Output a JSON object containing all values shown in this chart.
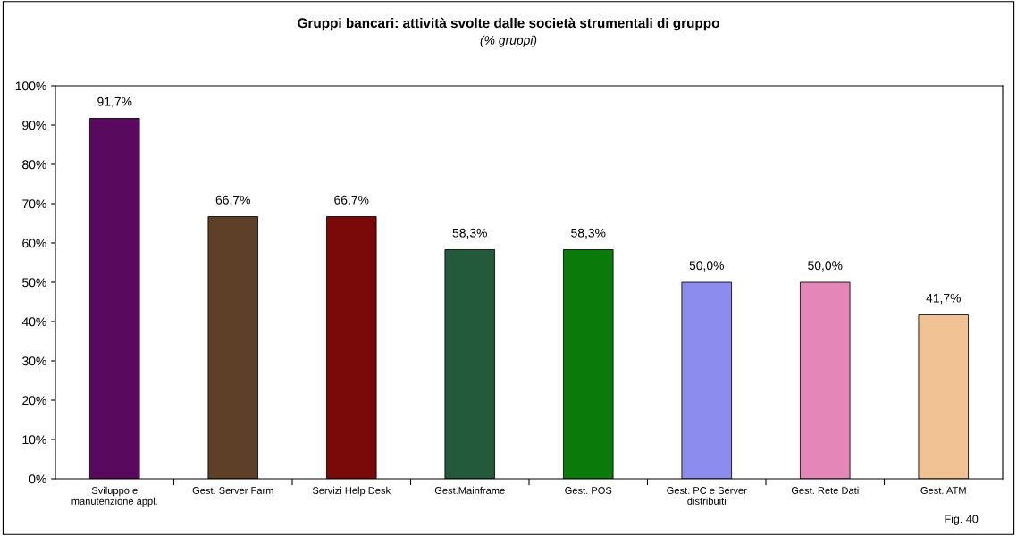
{
  "chart_data": {
    "type": "bar",
    "title": "Gruppi bancari: attività svolte dalle società strumentali di gruppo",
    "subtitle": "(% gruppi)",
    "categories": [
      "Sviluppo e\nmanutenzione appl.",
      "Gest. Server Farm",
      "Servizi Help Desk",
      "Gest.Mainframe",
      "Gest. POS",
      "Gest. PC e Server\ndistribuiti",
      "Gest. Rete Dati",
      "Gest. ATM"
    ],
    "values": [
      91.7,
      66.7,
      66.7,
      58.3,
      58.3,
      50.0,
      50.0,
      41.7
    ],
    "colors": [
      "#5a0a5e",
      "#5e4028",
      "#7a0a0a",
      "#235a3c",
      "#0a7a0a",
      "#8c8cee",
      "#e486b8",
      "#f0c294"
    ],
    "value_labels": [
      "91,7%",
      "66,7%",
      "66,7%",
      "58,3%",
      "58,3%",
      "50,0%",
      "50,0%",
      "41,7%"
    ],
    "ylim": [
      0,
      100
    ],
    "yticks": [
      {
        "value": 0,
        "label": "0%"
      },
      {
        "value": 10,
        "label": "10%"
      },
      {
        "value": 20,
        "label": "20%"
      },
      {
        "value": 30,
        "label": "30%"
      },
      {
        "value": 40,
        "label": "40%"
      },
      {
        "value": 50,
        "label": "50%"
      },
      {
        "value": 60,
        "label": "60%"
      },
      {
        "value": 70,
        "label": "70%"
      },
      {
        "value": 80,
        "label": "80%"
      },
      {
        "value": 90,
        "label": "90%"
      },
      {
        "value": 100,
        "label": "100%"
      }
    ],
    "grid": false,
    "legend": false,
    "annotations": [
      "Fig. 40"
    ]
  }
}
